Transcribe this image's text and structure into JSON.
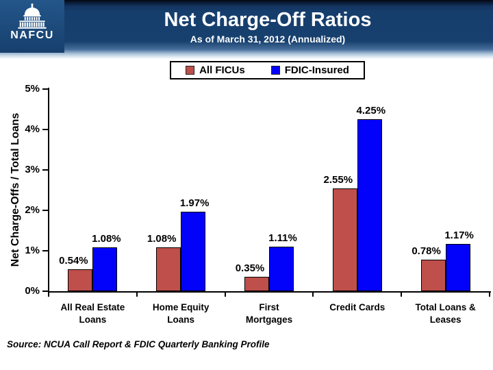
{
  "header": {
    "title": "Net Charge-Off Ratios",
    "subtitle": "As of March 31, 2012 (Annualized)",
    "logo_text": "NAFCU"
  },
  "chart_data": {
    "type": "bar",
    "title": "Net Charge-Off Ratios",
    "categories": [
      "All Real Estate\nLoans",
      "Home Equity\nLoans",
      "First\nMortgages",
      "Credit Cards",
      "Total Loans &\nLeases"
    ],
    "series": [
      {
        "name": "All FICUs",
        "color": "#BE4F4B",
        "values": [
          0.54,
          1.08,
          0.35,
          2.55,
          0.78
        ]
      },
      {
        "name": "FDIC-Insured",
        "color": "#0202FB",
        "values": [
          1.08,
          1.97,
          1.11,
          4.25,
          1.17
        ]
      }
    ],
    "value_labels": [
      "0.54%",
      "1.08%",
      "0.35%",
      "2.55%",
      "0.78%",
      "1.08%",
      "1.97%",
      "1.11%",
      "4.25%",
      "1.17%"
    ],
    "xlabel": "",
    "ylabel": "Net Charge-Offs / Total Loans",
    "ylim": [
      0,
      5
    ],
    "ytick_labels": [
      "0%",
      "1%",
      "2%",
      "3%",
      "4%",
      "5%"
    ],
    "grid": false,
    "legend_position": "top",
    "bar_border_color": "#000000",
    "axis_color": "#000000"
  },
  "footer": {
    "source": "Source: NCUA Call Report & FDIC Quarterly Banking Profile"
  }
}
